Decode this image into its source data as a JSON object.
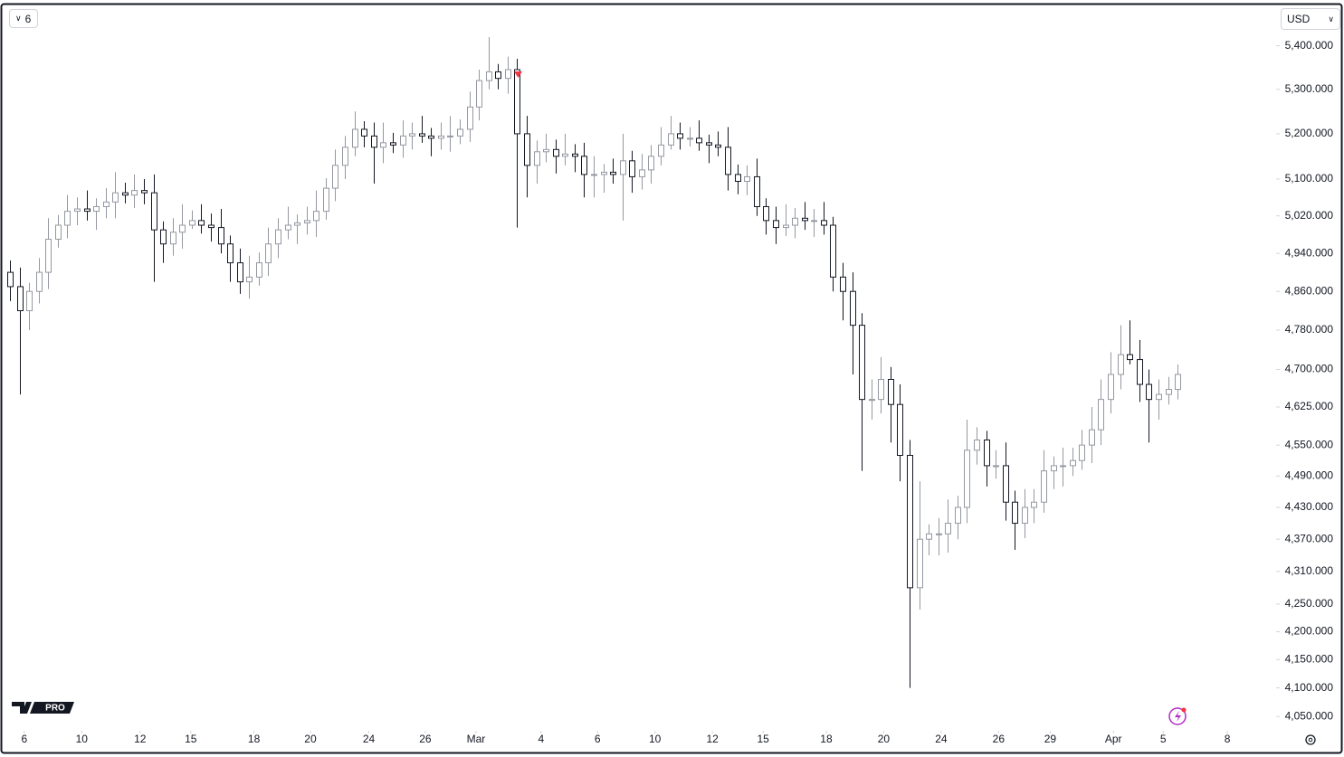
{
  "ui": {
    "interval": "6",
    "currency": "USD",
    "logo": "PRO"
  },
  "chart_data": {
    "type": "candlestick",
    "log": true,
    "up_color": "#9598a1",
    "down_color": "#131722",
    "xlim": [
      -0.75,
      132.3
    ],
    "ylim": [
      4030,
      5490
    ],
    "xticks": [
      {
        "value": 1.5,
        "label": "6"
      },
      {
        "value": 7.5,
        "label": "10"
      },
      {
        "value": 13.6,
        "label": "12"
      },
      {
        "value": 18.9,
        "label": "15"
      },
      {
        "value": 25.5,
        "label": "18"
      },
      {
        "value": 31.4,
        "label": "20"
      },
      {
        "value": 37.5,
        "label": "24"
      },
      {
        "value": 43.4,
        "label": "26"
      },
      {
        "value": 48.7,
        "label": "Mar"
      },
      {
        "value": 55.5,
        "label": "4"
      },
      {
        "value": 61.4,
        "label": "6"
      },
      {
        "value": 67.4,
        "label": "10"
      },
      {
        "value": 73.4,
        "label": "12"
      },
      {
        "value": 78.7,
        "label": "15"
      },
      {
        "value": 85.3,
        "label": "18"
      },
      {
        "value": 91.3,
        "label": "20"
      },
      {
        "value": 97.3,
        "label": "24"
      },
      {
        "value": 103.3,
        "label": "26"
      },
      {
        "value": 108.7,
        "label": "29"
      },
      {
        "value": 115.3,
        "label": "Apr"
      },
      {
        "value": 120.5,
        "label": "5"
      },
      {
        "value": 127.2,
        "label": "8"
      }
    ],
    "yticks": [
      {
        "value": 5400,
        "label": "5,400.000"
      },
      {
        "value": 5300,
        "label": "5,300.000"
      },
      {
        "value": 5200,
        "label": "5,200.000"
      },
      {
        "value": 5100,
        "label": "5,100.000"
      },
      {
        "value": 5020,
        "label": "5,020.000"
      },
      {
        "value": 4940,
        "label": "4,940.000"
      },
      {
        "value": 4860,
        "label": "4,860.000"
      },
      {
        "value": 4780,
        "label": "4,780.000"
      },
      {
        "value": 4700,
        "label": "4,700.000"
      },
      {
        "value": 4625,
        "label": "4,625.000"
      },
      {
        "value": 4550,
        "label": "4,550.000"
      },
      {
        "value": 4490,
        "label": "4,490.000"
      },
      {
        "value": 4430,
        "label": "4,430.000"
      },
      {
        "value": 4370,
        "label": "4,370.000"
      },
      {
        "value": 4310,
        "label": "4,310.000"
      },
      {
        "value": 4250,
        "label": "4,250.000"
      },
      {
        "value": 4200,
        "label": "4,200.000"
      },
      {
        "value": 4150,
        "label": "4,150.000"
      },
      {
        "value": 4100,
        "label": "4,100.000"
      },
      {
        "value": 4050,
        "label": "4,050.000"
      }
    ],
    "open": [
      4900,
      4870,
      4820,
      4860,
      4900,
      4970,
      5000,
      5030,
      5035,
      5030,
      5040,
      5050,
      5070,
      5065,
      5075,
      5070,
      4990,
      4960,
      4985,
      5000,
      5010,
      5000,
      4995,
      4960,
      4920,
      4880,
      4890,
      4920,
      4960,
      4990,
      5000,
      5005,
      5010,
      5030,
      5080,
      5130,
      5170,
      5210,
      5195,
      5170,
      5180,
      5175,
      5195,
      5200,
      5195,
      5190,
      5195,
      5195,
      5210,
      5260,
      5320,
      5340,
      5325,
      5345,
      5200,
      5130,
      5160,
      5165,
      5150,
      5155,
      5150,
      5110,
      5110,
      5115,
      5110,
      5140,
      5105,
      5120,
      5150,
      5175,
      5200,
      5190,
      5190,
      5180,
      5175,
      5170,
      5110,
      5095,
      5105,
      5040,
      5010,
      4995,
      5000,
      5015,
      5010,
      5010,
      5000,
      4890,
      4860,
      4790,
      4640,
      4640,
      4680,
      4630,
      4530,
      4280,
      4370,
      4380,
      4380,
      4400,
      4430,
      4540,
      4560,
      4510,
      4510,
      4440,
      4400,
      4430,
      4440,
      4500,
      4510,
      4510,
      4520,
      4550,
      4580,
      4640,
      4690,
      4730,
      4720,
      4670,
      4640,
      4650,
      4660
    ],
    "high": [
      4925,
      4910,
      4878,
      4930,
      5015,
      5022,
      5065,
      5060,
      5075,
      5058,
      5080,
      5115,
      5092,
      5110,
      5100,
      5110,
      5008,
      5015,
      5045,
      5032,
      5045,
      5025,
      5035,
      4978,
      4950,
      4935,
      4942,
      4995,
      5015,
      5040,
      5023,
      5040,
      5075,
      5102,
      5165,
      5195,
      5250,
      5228,
      5225,
      5225,
      5202,
      5230,
      5225,
      5240,
      5213,
      5225,
      5240,
      5232,
      5295,
      5345,
      5420,
      5358,
      5375,
      5370,
      5240,
      5185,
      5200,
      5187,
      5200,
      5177,
      5180,
      5150,
      5133,
      5145,
      5200,
      5162,
      5155,
      5175,
      5215,
      5240,
      5225,
      5215,
      5230,
      5198,
      5205,
      5215,
      5132,
      5130,
      5145,
      5058,
      5040,
      5045,
      5037,
      5050,
      5035,
      5050,
      5018,
      4920,
      4900,
      4815,
      4680,
      4725,
      4705,
      4670,
      4560,
      4480,
      4398,
      4410,
      4445,
      4452,
      4600,
      4585,
      4578,
      4540,
      4555,
      4462,
      4465,
      4465,
      4540,
      4528,
      4545,
      4545,
      4580,
      4625,
      4680,
      4735,
      4790,
      4800,
      4760,
      4700,
      4680,
      4685,
      4710
    ],
    "low": [
      4840,
      4650,
      4780,
      4835,
      4865,
      4952,
      4972,
      5000,
      5010,
      4990,
      5015,
      5015,
      5047,
      5037,
      5045,
      4880,
      4920,
      4935,
      4950,
      4992,
      4982,
      4965,
      4940,
      4880,
      4855,
      4845,
      4872,
      4892,
      4930,
      4970,
      4960,
      4980,
      4975,
      5012,
      5052,
      5100,
      5150,
      5170,
      5090,
      5135,
      5157,
      5147,
      5165,
      5180,
      5150,
      5165,
      5160,
      5177,
      5182,
      5230,
      5300,
      5300,
      5290,
      4995,
      5060,
      5090,
      5137,
      5112,
      5130,
      5115,
      5060,
      5060,
      5070,
      5090,
      5010,
      5070,
      5077,
      5090,
      5130,
      5165,
      5165,
      5172,
      5162,
      5135,
      5150,
      5075,
      5067,
      5065,
      5020,
      4980,
      4960,
      4977,
      4972,
      4990,
      4975,
      4980,
      4860,
      4800,
      4690,
      4500,
      4600,
      4612,
      4555,
      4480,
      4100,
      4240,
      4340,
      4340,
      4345,
      4370,
      4400,
      4512,
      4470,
      4485,
      4405,
      4350,
      4372,
      4400,
      4420,
      4465,
      4470,
      4490,
      4502,
      4515,
      4550,
      4612,
      4660,
      4710,
      4635,
      4555,
      4600,
      4630,
      4640
    ],
    "close": [
      4870,
      4820,
      4860,
      4900,
      4970,
      5000,
      5030,
      5035,
      5030,
      5040,
      5050,
      5070,
      5065,
      5075,
      5070,
      4990,
      4960,
      4985,
      5000,
      5010,
      5000,
      4995,
      4960,
      4920,
      4880,
      4890,
      4920,
      4960,
      4990,
      5000,
      5005,
      5010,
      5030,
      5080,
      5130,
      5170,
      5210,
      5195,
      5170,
      5180,
      5175,
      5195,
      5200,
      5195,
      5190,
      5195,
      5195,
      5210,
      5260,
      5320,
      5340,
      5325,
      5345,
      5200,
      5130,
      5160,
      5165,
      5150,
      5155,
      5150,
      5110,
      5110,
      5115,
      5110,
      5140,
      5105,
      5120,
      5150,
      5175,
      5200,
      5190,
      5190,
      5180,
      5175,
      5170,
      5110,
      5095,
      5105,
      5040,
      5010,
      4995,
      5000,
      5015,
      5010,
      5010,
      5000,
      4890,
      4860,
      4790,
      4640,
      4640,
      4680,
      4630,
      4530,
      4280,
      4370,
      4380,
      4380,
      4400,
      4430,
      4540,
      4560,
      4510,
      4510,
      4440,
      4400,
      4430,
      4440,
      4500,
      4510,
      4510,
      4520,
      4550,
      4580,
      4640,
      4690,
      4730,
      4720,
      4670,
      4640,
      4650,
      4660,
      4690
    ]
  }
}
